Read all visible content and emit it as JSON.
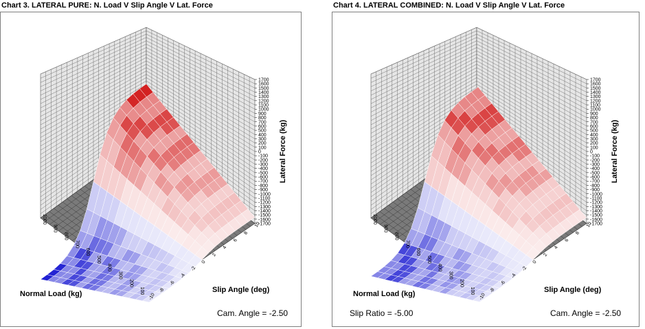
{
  "chart_data": [
    {
      "type": "surface3d",
      "title": "Chart 3. LATERAL PURE: N. Load V Slip Angle V Lat. Force",
      "xlabel": "Normal Load (kg)",
      "ylabel": "Slip Angle (deg)",
      "zlabel": "Lateral Force (kg)",
      "x_ticks": [
        "1000",
        "900",
        "800",
        "700",
        "600",
        "500",
        "400",
        "300",
        "200",
        "100"
      ],
      "y_ticks": [
        "10",
        "8",
        "6",
        "4",
        "2",
        "0",
        "-2",
        "-4",
        "-6",
        "-8",
        "-10"
      ],
      "z_ticks": [
        "1700",
        "1600",
        "1500",
        "1400",
        "1300",
        "1200",
        "1100",
        "1000",
        "900",
        "800",
        "700",
        "600",
        "500",
        "400",
        "300",
        "200",
        "100",
        "0",
        "-100",
        "-200",
        "-300",
        "-400",
        "-500",
        "-600",
        "-700",
        "-800",
        "-900",
        "-1000",
        "-1100",
        "-1200",
        "-1300",
        "-1400",
        "-1500",
        "-1600",
        "-1700"
      ],
      "x_range": [
        100,
        1000
      ],
      "y_range": [
        -10,
        10
      ],
      "z_range": [
        -1700,
        1700
      ],
      "grid": true,
      "colors": {
        "positive": "#cc0000",
        "negative": "#0000cc",
        "zero": "#ffffff",
        "floor": "#7a7a7a",
        "wall": "#e6e6e6"
      },
      "readouts": {
        "camber": "Cam. Angle =  -2.50"
      }
    },
    {
      "type": "surface3d",
      "title": "Chart 4. LATERAL COMBINED: N. Load V Slip Angle V Lat. Force",
      "xlabel": "Normal Load (kg)",
      "ylabel": "Slip Angle (deg)",
      "zlabel": "Lateral Force (kg)",
      "x_ticks": [
        "1000",
        "900",
        "800",
        "700",
        "600",
        "500",
        "400",
        "300",
        "200",
        "100"
      ],
      "y_ticks": [
        "10",
        "8",
        "6",
        "4",
        "2",
        "0",
        "-2",
        "-4",
        "-6",
        "-8",
        "-10"
      ],
      "z_ticks": [
        "1700",
        "1600",
        "1500",
        "1400",
        "1300",
        "1200",
        "1100",
        "1000",
        "900",
        "800",
        "700",
        "600",
        "500",
        "400",
        "300",
        "200",
        "100",
        "0",
        "-100",
        "-200",
        "-300",
        "-400",
        "-500",
        "-600",
        "-700",
        "-800",
        "-900",
        "-1000",
        "-1100",
        "-1200",
        "-1300",
        "-1400",
        "-1500",
        "-1600",
        "-1700"
      ],
      "x_range": [
        100,
        1000
      ],
      "y_range": [
        -10,
        10
      ],
      "z_range": [
        -1700,
        1700
      ],
      "grid": true,
      "colors": {
        "positive": "#cc0000",
        "negative": "#0000cc",
        "zero": "#ffffff",
        "floor": "#7a7a7a",
        "wall": "#e6e6e6"
      },
      "readouts": {
        "slip_ratio": "Slip Ratio =  -5.00",
        "camber": "Cam. Angle =  -2.50"
      }
    }
  ]
}
